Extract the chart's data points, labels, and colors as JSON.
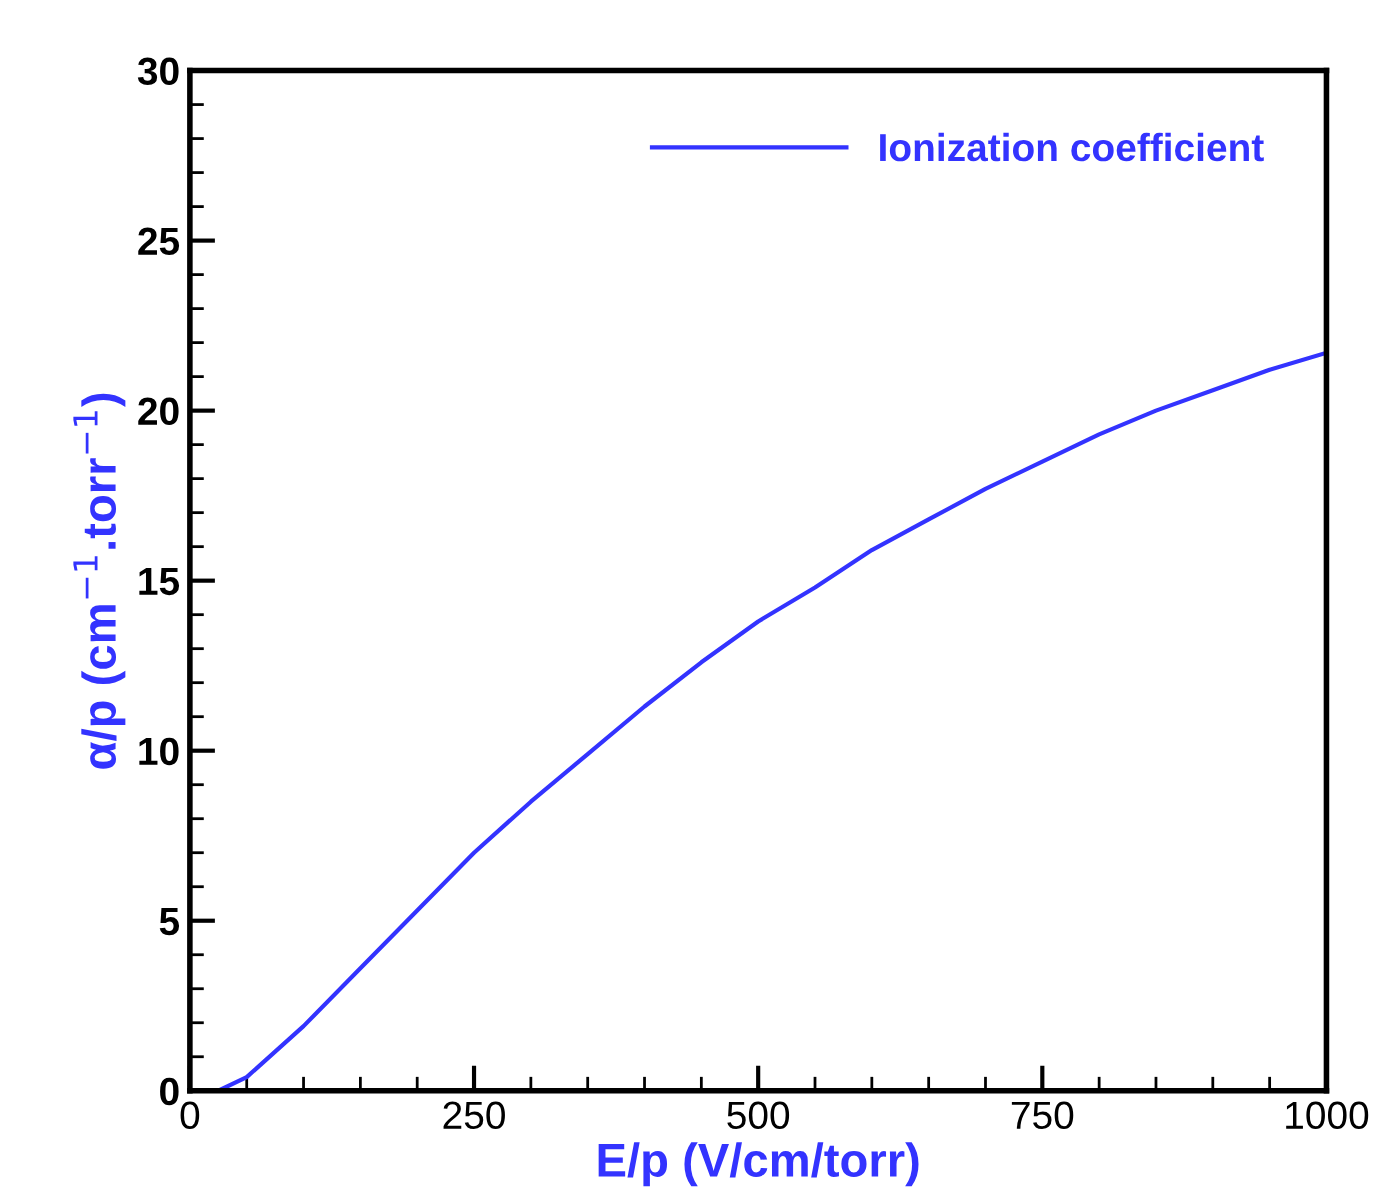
{
  "chart_data": {
    "type": "line",
    "xlabel": "E/p (V/cm/torr)",
    "ylabel": "α/p (cm$^{−1}$.torr$^{−1}$)",
    "xlim": [
      0,
      1000
    ],
    "ylim": [
      0,
      30
    ],
    "xticks": [
      0,
      {
        "value": 50,
        "label": null
      },
      {
        "value": 100,
        "label": null
      },
      {
        "value": 150,
        "label": null
      },
      {
        "value": 200,
        "label": null
      },
      250,
      {
        "value": 300,
        "label": null
      },
      {
        "value": 350,
        "label": null
      },
      {
        "value": 400,
        "label": null
      },
      {
        "value": 450,
        "label": null
      },
      500,
      {
        "value": 550,
        "label": null
      },
      {
        "value": 600,
        "label": null
      },
      {
        "value": 650,
        "label": null
      },
      {
        "value": 700,
        "label": null
      },
      750,
      {
        "value": 800,
        "label": null
      },
      {
        "value": 850,
        "label": null
      },
      {
        "value": 900,
        "label": null
      },
      {
        "value": 950,
        "label": null
      },
      1000
    ],
    "yticks": [
      0,
      {
        "value": 1,
        "label": null
      },
      {
        "value": 2,
        "label": null
      },
      {
        "value": 3,
        "label": null
      },
      {
        "value": 4,
        "label": null
      },
      5,
      {
        "value": 6,
        "label": null
      },
      {
        "value": 7,
        "label": null
      },
      {
        "value": 8,
        "label": null
      },
      {
        "value": 9,
        "label": null
      },
      10,
      {
        "value": 11,
        "label": null
      },
      {
        "value": 12,
        "label": null
      },
      {
        "value": 13,
        "label": null
      },
      {
        "value": 14,
        "label": null
      },
      15,
      {
        "value": 16,
        "label": null
      },
      {
        "value": 17,
        "label": null
      },
      {
        "value": 18,
        "label": null
      },
      {
        "value": 19,
        "label": null
      },
      20,
      {
        "value": 21,
        "label": null
      },
      {
        "value": 22,
        "label": null
      },
      {
        "value": 23,
        "label": null
      },
      {
        "value": 24,
        "label": null
      },
      25,
      {
        "value": 26,
        "label": null
      },
      {
        "value": 27,
        "label": null
      },
      {
        "value": 28,
        "label": null
      },
      {
        "value": 29,
        "label": null
      },
      30
    ],
    "grid": false,
    "legend": "top right",
    "marker": "none",
    "line_style": "solid",
    "x": [
      25,
      50,
      100,
      150,
      200,
      250,
      300,
      350,
      400,
      450,
      500,
      550,
      600,
      650,
      700,
      750,
      800,
      850,
      900,
      950,
      1000
    ],
    "series": [
      {
        "name": "Ionization coefficient",
        "color": "#3333ff",
        "values": [
          0,
          0.4,
          1.9,
          3.6,
          5.3,
          7.0,
          8.5,
          9.9,
          11.3,
          12.6,
          13.8,
          14.8,
          15.9,
          16.8,
          17.7,
          18.5,
          19.3,
          20.0,
          20.6,
          21.2,
          21.7
        ]
      }
    ]
  }
}
